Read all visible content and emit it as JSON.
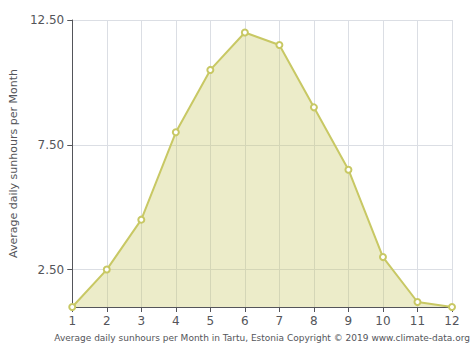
{
  "chart_data": {
    "type": "line",
    "xlabel": "Average daily sunhours per Month in Tartu, Estonia Copyright © 2019 www.climate-data.org",
    "ylabel": "Average daily sunhours per Month",
    "x": [
      1,
      2,
      3,
      4,
      5,
      6,
      7,
      8,
      9,
      10,
      11,
      12
    ],
    "values": [
      1.0,
      2.5,
      4.5,
      8.0,
      10.5,
      12.0,
      11.5,
      9.0,
      6.5,
      3.0,
      1.2,
      1.0
    ],
    "color": "#C8C864",
    "marker": "circle",
    "xlim": [
      1,
      12
    ],
    "xticks": [
      1,
      2,
      3,
      4,
      5,
      6,
      7,
      8,
      9,
      10,
      11,
      12
    ],
    "ylim": [
      1.0,
      12.5
    ],
    "yticks": [
      {
        "value": 2.5,
        "label": "2.50"
      },
      {
        "value": 7.5,
        "label": "7.50"
      },
      {
        "value": 12.5,
        "label": "12.50"
      }
    ],
    "grid": true
  }
}
